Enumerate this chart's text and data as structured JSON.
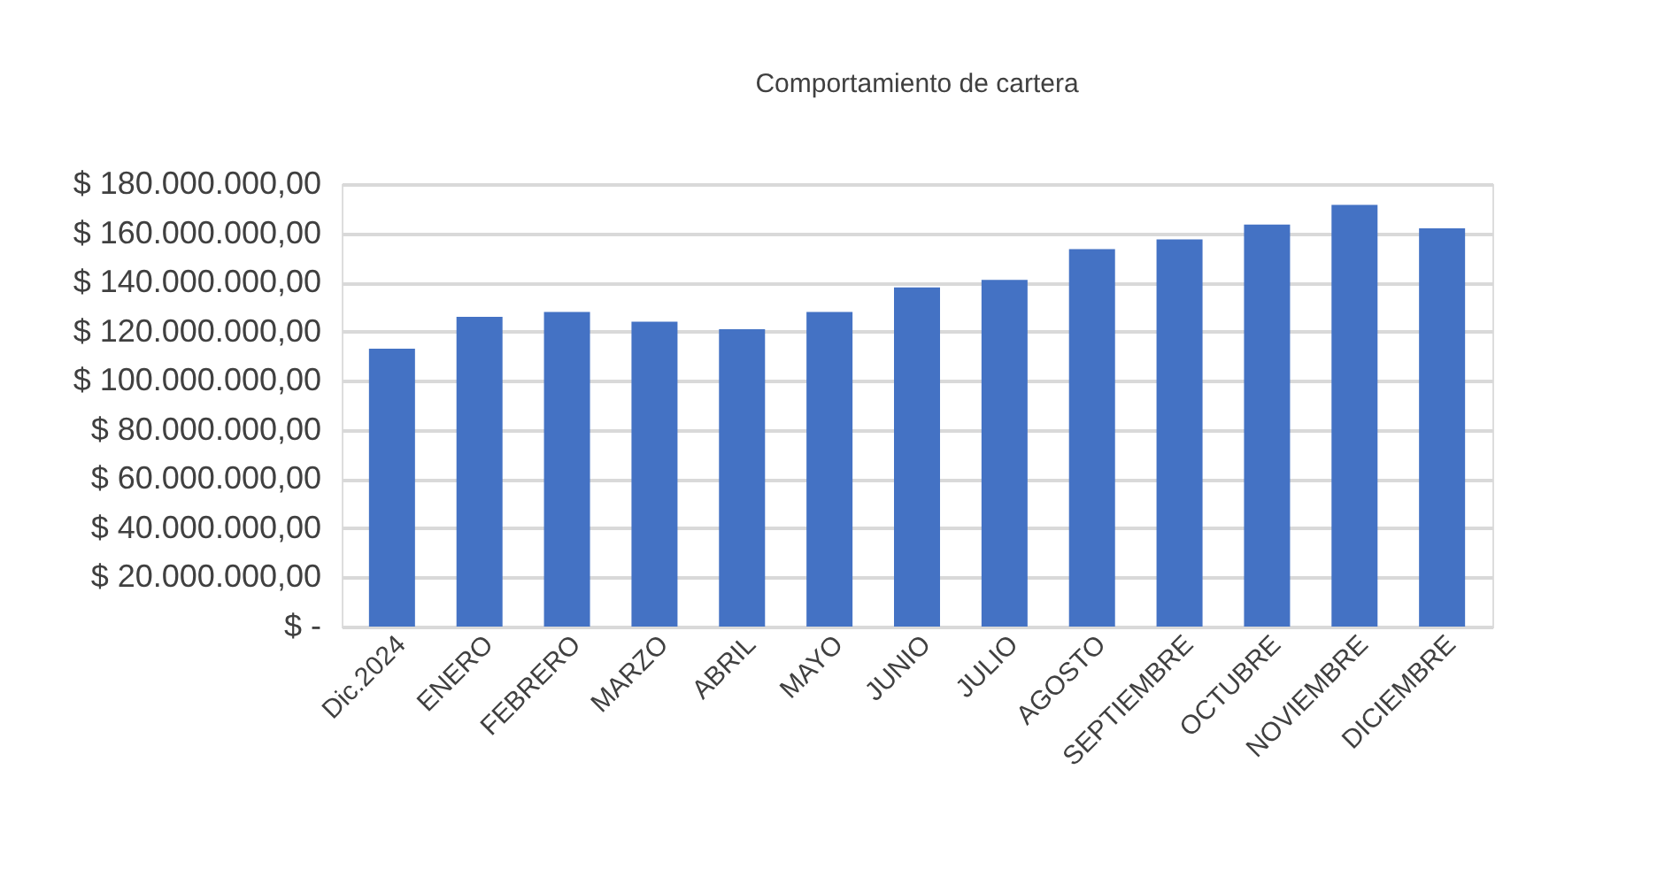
{
  "chart_data": {
    "type": "bar",
    "title": "Comportamiento de cartera",
    "categories": [
      "Dic.2024",
      "ENERO",
      "FEBRERO",
      "MARZO",
      "ABRIL",
      "MAYO",
      "JUNIO",
      "JULIO",
      "AGOSTO",
      "SEPTIEMBRE",
      "OCTUBRE",
      "NOVIEMBRE",
      "DICIEMBRE"
    ],
    "series": [
      {
        "color": "#4472c4",
        "values": [
          113000000,
          126000000,
          128000000,
          124000000,
          121000000,
          128000000,
          138000000,
          141000000,
          153500000,
          157500000,
          163500000,
          171500000,
          162000000
        ]
      }
    ],
    "ylim": [
      0,
      180000000
    ],
    "yticks": [
      {
        "value": 0,
        "label": "$ -"
      },
      {
        "value": 20000000,
        "label": "$ 20.000.000,00"
      },
      {
        "value": 40000000,
        "label": "$ 40.000.000,00"
      },
      {
        "value": 60000000,
        "label": "$ 60.000.000,00"
      },
      {
        "value": 80000000,
        "label": "$ 80.000.000,00"
      },
      {
        "value": 100000000,
        "label": "$ 100.000.000,00"
      },
      {
        "value": 120000000,
        "label": "$ 120.000.000,00"
      },
      {
        "value": 140000000,
        "label": "$ 140.000.000,00"
      },
      {
        "value": 160000000,
        "label": "$ 160.000.000,00"
      },
      {
        "value": 180000000,
        "label": "$ 180.000.000,00"
      }
    ],
    "grid": "y",
    "legend": false
  }
}
